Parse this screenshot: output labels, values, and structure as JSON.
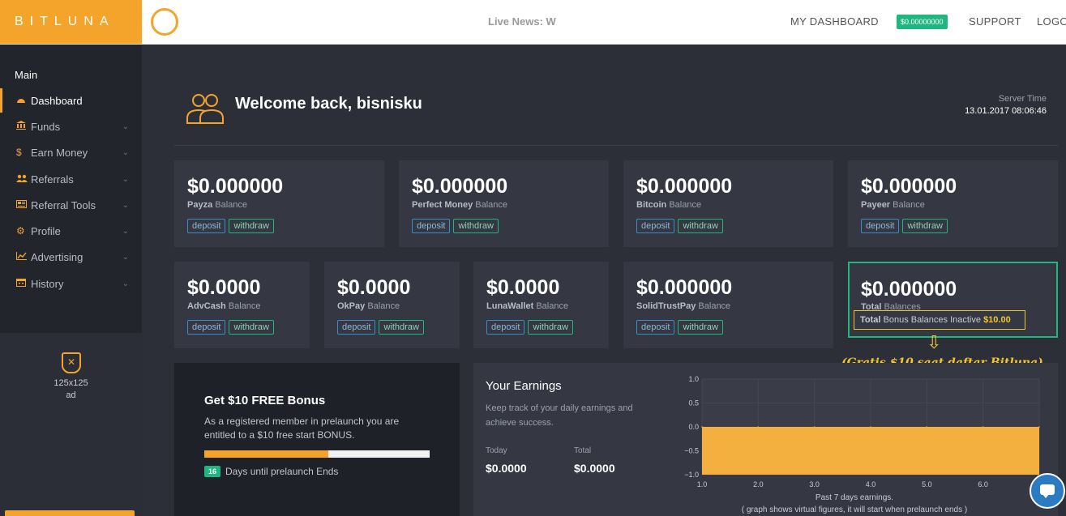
{
  "header": {
    "brand": "BITLUNA",
    "news_label": "Live News:",
    "news_text": "W",
    "nav": {
      "dashboard": "MY DASHBOARD",
      "balance": "$0.00000000",
      "support": "SUPPORT",
      "logout": "LOGOU"
    }
  },
  "sidebar": {
    "heading": "Main",
    "items": [
      {
        "label": "Dashboard",
        "icon": "dashboard-icon"
      },
      {
        "label": "Funds",
        "icon": "bank-icon"
      },
      {
        "label": "Earn Money",
        "icon": "dollar-icon"
      },
      {
        "label": "Referrals",
        "icon": "users-icon"
      },
      {
        "label": "Referral Tools",
        "icon": "newspaper-icon"
      },
      {
        "label": "Profile",
        "icon": "gear-icon"
      },
      {
        "label": "Advertising",
        "icon": "line-chart-icon"
      },
      {
        "label": "History",
        "icon": "calendar-icon"
      }
    ],
    "ad": {
      "size": "125x125",
      "label": "ad"
    }
  },
  "welcome": {
    "title": "Welcome back, bisnisku",
    "server_time_label": "Server Time",
    "server_time": "13.01.2017 08:06:46"
  },
  "balances_top": [
    {
      "amount": "$0.000000",
      "name": "Payza",
      "suffix": "Balance"
    },
    {
      "amount": "$0.000000",
      "name": "Perfect Money",
      "suffix": "Balance"
    },
    {
      "amount": "$0.000000",
      "name": "Bitcoin",
      "suffix": "Balance"
    },
    {
      "amount": "$0.000000",
      "name": "Payeer",
      "suffix": "Balance"
    }
  ],
  "balances_bottom": [
    {
      "amount": "$0.0000",
      "name": "AdvCash",
      "suffix": "Balance"
    },
    {
      "amount": "$0.0000",
      "name": "OkPay",
      "suffix": "Balance"
    },
    {
      "amount": "$0.0000",
      "name": "LunaWallet",
      "suffix": "Balance"
    },
    {
      "amount": "$0.000000",
      "name": "SolidTrustPay",
      "suffix": "Balance"
    }
  ],
  "buttons": {
    "deposit": "deposit",
    "withdraw": "withdraw"
  },
  "total": {
    "amount": "$0.000000",
    "name": "Total",
    "suffix": "Balances",
    "bonus_prefix": "Total",
    "bonus_text": "Bonus Balances Inactive",
    "bonus_amount": "$10.00"
  },
  "annotation": "(Gratis $10 saat daftar Bitluna)",
  "bonus": {
    "title": "Get $10 FREE Bonus",
    "desc": "As a registered member in prelaunch you are entitled to a $10 free start BONUS.",
    "progress": 0.55,
    "days": "16",
    "days_text": "Days until prelaunch Ends"
  },
  "earnings": {
    "title": "Your Earnings",
    "desc": "Keep track of your daily earnings and achieve success.",
    "today_label": "Today",
    "today_value": "$0.0000",
    "total_label": "Total",
    "total_value": "$0.0000"
  },
  "chart_data": {
    "type": "area",
    "x": [
      1.0,
      2.0,
      3.0,
      4.0,
      5.0,
      6.0,
      7.0
    ],
    "values": [
      0,
      0,
      0,
      0,
      0,
      0,
      0
    ],
    "xticks": [
      "1.0",
      "2.0",
      "3.0",
      "4.0",
      "5.0",
      "6.0"
    ],
    "yticks": [
      "1.0",
      "0.5",
      "0.0",
      "−0.5",
      "−1.0"
    ],
    "xlim": [
      1.0,
      7.0
    ],
    "ylim": [
      -1.0,
      1.0
    ],
    "xlabel": "Past 7 days earnings.",
    "note": "( graph shows virtual figures, it will start when prelaunch ends )",
    "grid": true,
    "color": "#f4b03e"
  }
}
